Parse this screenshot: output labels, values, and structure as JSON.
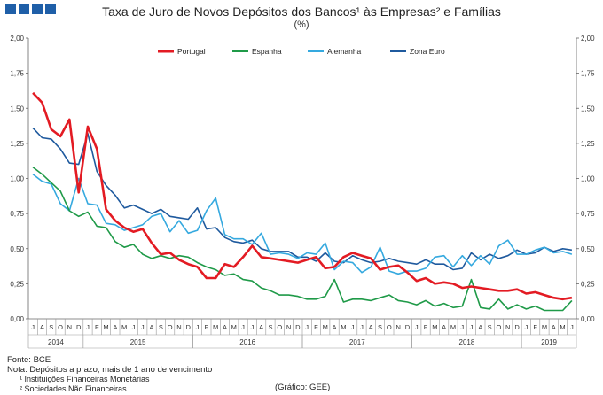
{
  "header": {
    "title": "Taxa de Juro de Novos Depósitos dos Bancos¹ às Empresas² e Famílias",
    "unit": "(%)"
  },
  "footer": {
    "fonte": "Fonte: BCE",
    "nota": "Nota: Depósitos a prazo, mais de 1 ano de vencimento",
    "nota1": "¹ Instituições Financeiras Monetárias",
    "nota2": "² Sociedades Não Financeiras",
    "grafico": "(Gráfico: GEE)"
  },
  "chart_data": {
    "type": "line",
    "title": "Taxa de Juro de Novos Depósitos dos Bancos¹ às Empresas² e Famílias",
    "subtitle": "(%)",
    "ylim": [
      0,
      2
    ],
    "yticks": [
      "0,00",
      "0,25",
      "0,50",
      "0,75",
      "1,00",
      "1,25",
      "1,50",
      "1,75",
      "2,00"
    ],
    "months": [
      "J",
      "A",
      "S",
      "O",
      "N",
      "D",
      "J",
      "F",
      "M",
      "A",
      "M",
      "J",
      "J",
      "A",
      "S",
      "O",
      "N",
      "D",
      "J",
      "F",
      "M",
      "A",
      "M",
      "J",
      "J",
      "A",
      "S",
      "O",
      "N",
      "D",
      "J",
      "F",
      "M",
      "A",
      "M",
      "J",
      "J",
      "A",
      "S",
      "O",
      "N",
      "D",
      "J",
      "F",
      "M",
      "A",
      "M",
      "J",
      "J",
      "A",
      "S",
      "O",
      "N",
      "D",
      "J",
      "F",
      "M",
      "A",
      "M",
      "J"
    ],
    "years": [
      {
        "label": "2014",
        "start": 0,
        "end": 6
      },
      {
        "label": "2015",
        "start": 6,
        "end": 18
      },
      {
        "label": "2016",
        "start": 18,
        "end": 30
      },
      {
        "label": "2017",
        "start": 30,
        "end": 42
      },
      {
        "label": "2018",
        "start": 42,
        "end": 54
      },
      {
        "label": "2019",
        "start": 54,
        "end": 60
      }
    ],
    "series": [
      {
        "name": "Portugal",
        "color": "#e31b23",
        "width": 2.6,
        "values": [
          1.61,
          1.54,
          1.35,
          1.3,
          1.42,
          0.9,
          1.37,
          1.21,
          0.78,
          0.7,
          0.65,
          0.62,
          0.64,
          0.54,
          0.46,
          0.47,
          0.42,
          0.39,
          0.37,
          0.29,
          0.29,
          0.39,
          0.37,
          0.44,
          0.52,
          0.44,
          0.43,
          0.42,
          0.41,
          0.4,
          0.42,
          0.44,
          0.36,
          0.37,
          0.44,
          0.47,
          0.45,
          0.43,
          0.35,
          0.37,
          0.38,
          0.33,
          0.27,
          0.29,
          0.25,
          0.26,
          0.25,
          0.22,
          0.23,
          0.22,
          0.21,
          0.2,
          0.2,
          0.21,
          0.18,
          0.19,
          0.17,
          0.15,
          0.14,
          0.15
        ]
      },
      {
        "name": "Espanha",
        "color": "#1f9a48",
        "width": 1.6,
        "values": [
          1.08,
          1.03,
          0.97,
          0.91,
          0.77,
          0.73,
          0.76,
          0.66,
          0.65,
          0.55,
          0.51,
          0.53,
          0.46,
          0.43,
          0.45,
          0.43,
          0.45,
          0.44,
          0.4,
          0.37,
          0.35,
          0.31,
          0.32,
          0.28,
          0.27,
          0.22,
          0.2,
          0.17,
          0.17,
          0.16,
          0.14,
          0.14,
          0.16,
          0.28,
          0.12,
          0.14,
          0.14,
          0.13,
          0.15,
          0.17,
          0.13,
          0.12,
          0.1,
          0.13,
          0.09,
          0.11,
          0.08,
          0.09,
          0.28,
          0.08,
          0.07,
          0.14,
          0.07,
          0.1,
          0.07,
          0.09,
          0.06,
          0.06,
          0.06,
          0.13
        ]
      },
      {
        "name": "Alemanha",
        "color": "#35a9df",
        "width": 1.6,
        "values": [
          1.03,
          0.98,
          0.96,
          0.82,
          0.77,
          1.0,
          0.82,
          0.81,
          0.68,
          0.67,
          0.63,
          0.65,
          0.67,
          0.73,
          0.75,
          0.62,
          0.7,
          0.61,
          0.63,
          0.77,
          0.86,
          0.6,
          0.57,
          0.57,
          0.53,
          0.61,
          0.46,
          0.47,
          0.46,
          0.43,
          0.47,
          0.46,
          0.54,
          0.35,
          0.41,
          0.4,
          0.33,
          0.37,
          0.51,
          0.34,
          0.32,
          0.34,
          0.34,
          0.36,
          0.44,
          0.45,
          0.37,
          0.45,
          0.38,
          0.45,
          0.39,
          0.52,
          0.56,
          0.46,
          0.46,
          0.49,
          0.51,
          0.47,
          0.48,
          0.46
        ]
      },
      {
        "name": "Zona Euro",
        "color": "#1f5a9e",
        "width": 1.6,
        "values": [
          1.36,
          1.29,
          1.28,
          1.21,
          1.11,
          1.1,
          1.32,
          1.05,
          0.95,
          0.88,
          0.79,
          0.81,
          0.78,
          0.75,
          0.78,
          0.73,
          0.72,
          0.71,
          0.79,
          0.64,
          0.65,
          0.58,
          0.55,
          0.54,
          0.56,
          0.5,
          0.48,
          0.48,
          0.48,
          0.44,
          0.44,
          0.41,
          0.47,
          0.41,
          0.4,
          0.45,
          0.42,
          0.4,
          0.41,
          0.43,
          0.41,
          0.4,
          0.39,
          0.42,
          0.39,
          0.39,
          0.35,
          0.36,
          0.47,
          0.42,
          0.46,
          0.43,
          0.45,
          0.49,
          0.46,
          0.47,
          0.51,
          0.48,
          0.5,
          0.49
        ]
      }
    ]
  }
}
